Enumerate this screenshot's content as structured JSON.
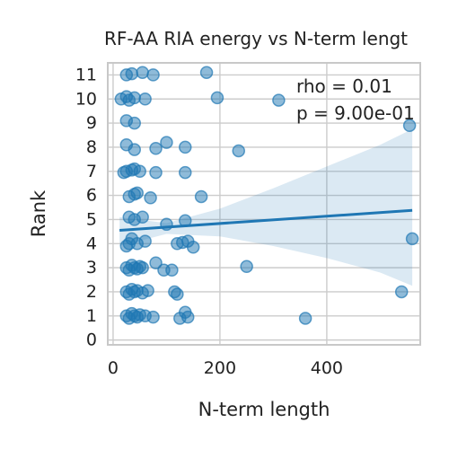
{
  "chart_data": {
    "type": "scatter",
    "title": "RF-AA RIA energy vs N-term lengt",
    "xlabel": "N-term length",
    "ylabel": "Rank",
    "xlim": [
      -10,
      575
    ],
    "ylim": [
      -0.2,
      11.5
    ],
    "x_ticks": [
      0,
      200,
      400
    ],
    "y_ticks": [
      0,
      1,
      2,
      3,
      4,
      5,
      6,
      7,
      8,
      9,
      10,
      11
    ],
    "grid": true,
    "annotations": [
      "rho = 0.01",
      "p = 9.00e-01"
    ],
    "series": [
      {
        "points": [
          [
            25,
            1.0
          ],
          [
            30,
            0.9
          ],
          [
            35,
            1.1
          ],
          [
            40,
            1.0
          ],
          [
            45,
            0.95
          ],
          [
            50,
            1.05
          ],
          [
            60,
            1.0
          ],
          [
            75,
            0.95
          ],
          [
            125,
            0.9
          ],
          [
            135,
            1.15
          ],
          [
            140,
            0.95
          ],
          [
            360,
            0.9
          ],
          [
            25,
            2.0
          ],
          [
            30,
            1.9
          ],
          [
            35,
            2.1
          ],
          [
            40,
            2.0
          ],
          [
            45,
            2.05
          ],
          [
            55,
            1.95
          ],
          [
            65,
            2.05
          ],
          [
            115,
            2.0
          ],
          [
            120,
            1.9
          ],
          [
            540,
            2.0
          ],
          [
            25,
            3.0
          ],
          [
            30,
            2.9
          ],
          [
            35,
            3.1
          ],
          [
            40,
            3.0
          ],
          [
            45,
            2.95
          ],
          [
            50,
            3.05
          ],
          [
            55,
            3.0
          ],
          [
            80,
            3.2
          ],
          [
            95,
            2.9
          ],
          [
            110,
            2.9
          ],
          [
            250,
            3.05
          ],
          [
            25,
            3.9
          ],
          [
            30,
            4.0
          ],
          [
            35,
            4.2
          ],
          [
            45,
            4.0
          ],
          [
            60,
            4.1
          ],
          [
            120,
            4.0
          ],
          [
            130,
            4.05
          ],
          [
            140,
            4.1
          ],
          [
            150,
            3.85
          ],
          [
            560,
            4.2
          ],
          [
            30,
            5.1
          ],
          [
            40,
            5.0
          ],
          [
            55,
            5.1
          ],
          [
            100,
            4.8
          ],
          [
            135,
            4.95
          ],
          [
            30,
            5.95
          ],
          [
            40,
            6.05
          ],
          [
            45,
            6.1
          ],
          [
            70,
            5.9
          ],
          [
            165,
            5.95
          ],
          [
            20,
            6.95
          ],
          [
            25,
            7.0
          ],
          [
            35,
            7.05
          ],
          [
            40,
            7.1
          ],
          [
            50,
            7.0
          ],
          [
            80,
            6.95
          ],
          [
            135,
            6.95
          ],
          [
            25,
            8.1
          ],
          [
            40,
            7.9
          ],
          [
            80,
            7.95
          ],
          [
            100,
            8.2
          ],
          [
            135,
            8.0
          ],
          [
            235,
            7.85
          ],
          [
            25,
            9.1
          ],
          [
            40,
            9.0
          ],
          [
            555,
            8.9
          ],
          [
            15,
            10.0
          ],
          [
            25,
            10.1
          ],
          [
            30,
            9.95
          ],
          [
            40,
            10.05
          ],
          [
            60,
            10.0
          ],
          [
            195,
            10.05
          ],
          [
            310,
            9.95
          ],
          [
            25,
            11.0
          ],
          [
            35,
            11.05
          ],
          [
            55,
            11.1
          ],
          [
            75,
            11.0
          ],
          [
            175,
            11.1
          ]
        ]
      }
    ],
    "regression": {
      "x_start": 12,
      "y_start": 4.55,
      "x_end": 560,
      "y_end": 5.38
    },
    "confidence_band": {
      "x": [
        12,
        100,
        200,
        300,
        400,
        500,
        560
      ],
      "lower": [
        3.9,
        4.4,
        4.3,
        3.9,
        3.4,
        2.8,
        2.25
      ],
      "upper": [
        5.1,
        4.85,
        5.45,
        6.3,
        7.2,
        8.1,
        8.75
      ]
    }
  }
}
